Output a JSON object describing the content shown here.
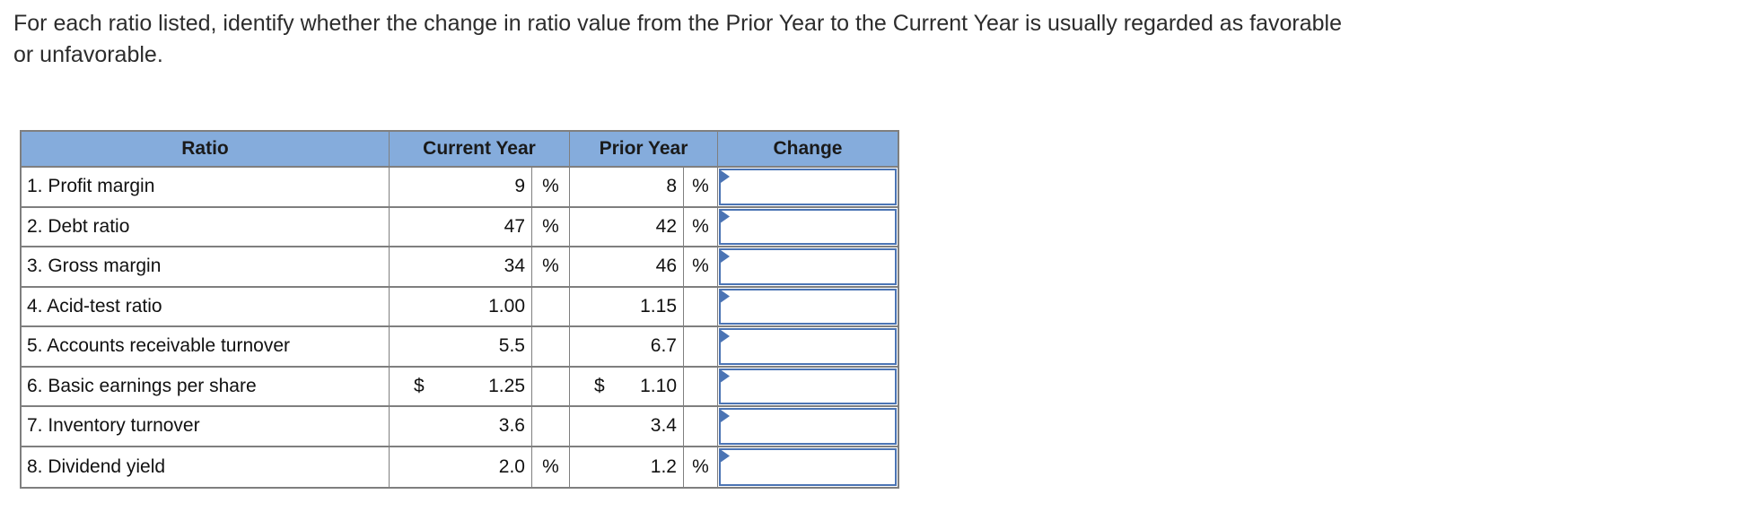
{
  "question": {
    "line1": "For each ratio listed, identify whether the change in ratio value from the Prior Year to the Current Year is usually regarded as favorable",
    "line2": "or unfavorable."
  },
  "table": {
    "headers": {
      "ratio": "Ratio",
      "current_year": "Current Year",
      "prior_year": "Prior Year",
      "change": "Change"
    },
    "rows": [
      {
        "ratio": "1. Profit margin",
        "current_currency": "",
        "current_value": "9",
        "current_unit": "%",
        "prior_currency": "",
        "prior_value": "8",
        "prior_unit": "%",
        "change_value": ""
      },
      {
        "ratio": "2. Debt ratio",
        "current_currency": "",
        "current_value": "47",
        "current_unit": "%",
        "prior_currency": "",
        "prior_value": "42",
        "prior_unit": "%",
        "change_value": ""
      },
      {
        "ratio": "3. Gross margin",
        "current_currency": "",
        "current_value": "34",
        "current_unit": "%",
        "prior_currency": "",
        "prior_value": "46",
        "prior_unit": "%",
        "change_value": ""
      },
      {
        "ratio": "4. Acid-test ratio",
        "current_currency": "",
        "current_value": "1.00",
        "current_unit": "",
        "prior_currency": "",
        "prior_value": "1.15",
        "prior_unit": "",
        "change_value": ""
      },
      {
        "ratio": "5. Accounts receivable turnover",
        "current_currency": "",
        "current_value": "5.5",
        "current_unit": "",
        "prior_currency": "",
        "prior_value": "6.7",
        "prior_unit": "",
        "change_value": ""
      },
      {
        "ratio": "6. Basic earnings per share",
        "current_currency": "$",
        "current_value": "1.25",
        "current_unit": "",
        "prior_currency": "$",
        "prior_value": "1.10",
        "prior_unit": "",
        "change_value": ""
      },
      {
        "ratio": "7. Inventory turnover",
        "current_currency": "",
        "current_value": "3.6",
        "current_unit": "",
        "prior_currency": "",
        "prior_value": "3.4",
        "prior_unit": "",
        "change_value": ""
      },
      {
        "ratio": "8. Dividend yield",
        "current_currency": "",
        "current_value": "2.0",
        "current_unit": "%",
        "prior_currency": "",
        "prior_value": "1.2",
        "prior_unit": "%",
        "change_value": ""
      }
    ],
    "colors": {
      "header_bg": "#85ACDC",
      "grid_border": "#7F7F7F",
      "answer_border": "#4B74B4"
    },
    "icons": {
      "answer_marker": "right-triangle-flag"
    }
  }
}
